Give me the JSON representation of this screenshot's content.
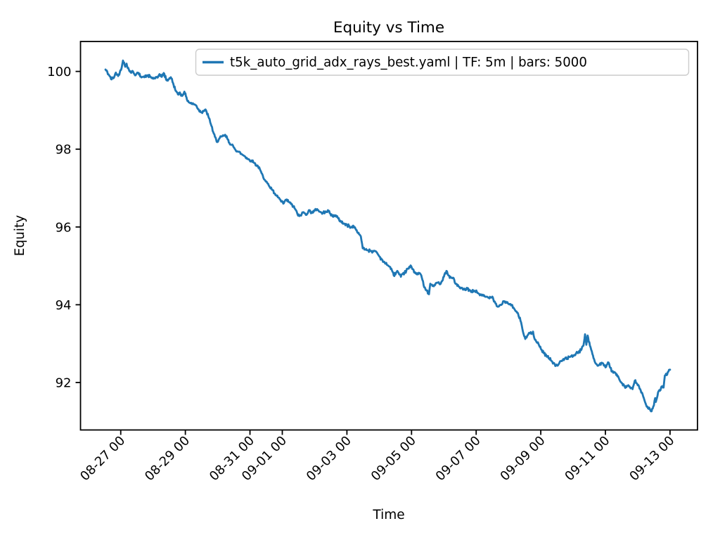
{
  "figure": {
    "background": "#ffffff"
  },
  "chart_data": {
    "type": "line",
    "title": "Equity vs Time",
    "xlabel": "Time",
    "ylabel": "Equity",
    "grid": false,
    "legend": {
      "position": "upper right",
      "entries": [
        {
          "label": "t5k_auto_grid_adx_rays_best.yaml | TF: 5m | bars: 5000",
          "color": "#1f77b4"
        }
      ]
    },
    "x_axis": {
      "tick_labels": [
        "08-27 00",
        "08-29 00",
        "08-31 00",
        "09-01 00",
        "09-03 00",
        "09-05 00",
        "09-07 00",
        "09-09 00",
        "09-11 00",
        "09-13 00"
      ],
      "tick_positions_days": [
        1,
        3,
        5,
        6,
        8,
        10,
        12,
        14,
        16,
        18
      ],
      "xlim_days": [
        -0.245,
        18.85
      ],
      "tick_rotation_deg": 45
    },
    "y_axis": {
      "tick_labels": [
        "92",
        "94",
        "96",
        "98",
        "100"
      ],
      "tick_values": [
        92,
        94,
        96,
        98,
        100
      ],
      "ylim": [
        90.78,
        100.77
      ]
    },
    "series": [
      {
        "name": "t5k_auto_grid_adx_rays_best.yaml | TF: 5m | bars: 5000",
        "color": "#1f77b4",
        "linewidth": 2.8,
        "points": [
          [
            0.528,
            100.05
          ],
          [
            0.64,
            99.9
          ],
          [
            0.7,
            99.8
          ],
          [
            0.79,
            99.84
          ],
          [
            0.85,
            99.97
          ],
          [
            0.92,
            99.88
          ],
          [
            0.99,
            100.03
          ],
          [
            1.03,
            100.1
          ],
          [
            1.07,
            100.28
          ],
          [
            1.14,
            100.12
          ],
          [
            1.18,
            100.2
          ],
          [
            1.25,
            100.05
          ],
          [
            1.31,
            99.97
          ],
          [
            1.38,
            100.0
          ],
          [
            1.46,
            99.9
          ],
          [
            1.53,
            99.96
          ],
          [
            1.62,
            99.87
          ],
          [
            1.73,
            99.85
          ],
          [
            1.83,
            99.9
          ],
          [
            1.94,
            99.84
          ],
          [
            2.05,
            99.82
          ],
          [
            2.14,
            99.84
          ],
          [
            2.2,
            99.93
          ],
          [
            2.27,
            99.86
          ],
          [
            2.33,
            99.96
          ],
          [
            2.42,
            99.77
          ],
          [
            2.49,
            99.8
          ],
          [
            2.55,
            99.85
          ],
          [
            2.62,
            99.7
          ],
          [
            2.7,
            99.5
          ],
          [
            2.77,
            99.41
          ],
          [
            2.83,
            99.46
          ],
          [
            2.9,
            99.37
          ],
          [
            2.97,
            99.48
          ],
          [
            3.05,
            99.27
          ],
          [
            3.14,
            99.19
          ],
          [
            3.25,
            99.16
          ],
          [
            3.34,
            99.12
          ],
          [
            3.42,
            99.0
          ],
          [
            3.49,
            98.95
          ],
          [
            3.57,
            98.99
          ],
          [
            3.64,
            99.0
          ],
          [
            3.73,
            98.8
          ],
          [
            3.79,
            98.64
          ],
          [
            3.88,
            98.4
          ],
          [
            3.97,
            98.19
          ],
          [
            4.05,
            98.27
          ],
          [
            4.14,
            98.33
          ],
          [
            4.23,
            98.37
          ],
          [
            4.31,
            98.25
          ],
          [
            4.4,
            98.12
          ],
          [
            4.51,
            98.04
          ],
          [
            4.62,
            97.94
          ],
          [
            4.73,
            97.88
          ],
          [
            4.84,
            97.82
          ],
          [
            4.95,
            97.74
          ],
          [
            5.05,
            97.71
          ],
          [
            5.14,
            97.64
          ],
          [
            5.25,
            97.56
          ],
          [
            5.36,
            97.38
          ],
          [
            5.47,
            97.2
          ],
          [
            5.58,
            97.07
          ],
          [
            5.69,
            96.95
          ],
          [
            5.79,
            96.82
          ],
          [
            5.88,
            96.76
          ],
          [
            5.97,
            96.65
          ],
          [
            6.03,
            96.6
          ],
          [
            6.12,
            96.7
          ],
          [
            6.21,
            96.64
          ],
          [
            6.27,
            96.59
          ],
          [
            6.34,
            96.52
          ],
          [
            6.4,
            96.46
          ],
          [
            6.47,
            96.33
          ],
          [
            6.53,
            96.28
          ],
          [
            6.6,
            96.33
          ],
          [
            6.66,
            96.38
          ],
          [
            6.73,
            96.31
          ],
          [
            6.82,
            96.43
          ],
          [
            6.9,
            96.36
          ],
          [
            6.99,
            96.41
          ],
          [
            7.08,
            96.46
          ],
          [
            7.17,
            96.39
          ],
          [
            7.25,
            96.35
          ],
          [
            7.34,
            96.4
          ],
          [
            7.43,
            96.41
          ],
          [
            7.49,
            96.34
          ],
          [
            7.56,
            96.27
          ],
          [
            7.64,
            96.3
          ],
          [
            7.73,
            96.22
          ],
          [
            7.82,
            96.14
          ],
          [
            7.9,
            96.09
          ],
          [
            7.99,
            96.05
          ],
          [
            8.08,
            96.02
          ],
          [
            8.14,
            95.99
          ],
          [
            8.21,
            96.02
          ],
          [
            8.3,
            95.92
          ],
          [
            8.36,
            95.85
          ],
          [
            8.43,
            95.76
          ],
          [
            8.49,
            95.45
          ],
          [
            8.56,
            95.42
          ],
          [
            8.65,
            95.4
          ],
          [
            8.73,
            95.39
          ],
          [
            8.82,
            95.37
          ],
          [
            8.91,
            95.36
          ],
          [
            8.99,
            95.26
          ],
          [
            9.08,
            95.16
          ],
          [
            9.17,
            95.08
          ],
          [
            9.25,
            95.02
          ],
          [
            9.34,
            94.97
          ],
          [
            9.41,
            94.85
          ],
          [
            9.45,
            94.75
          ],
          [
            9.52,
            94.82
          ],
          [
            9.56,
            94.87
          ],
          [
            9.62,
            94.78
          ],
          [
            9.67,
            94.72
          ],
          [
            9.73,
            94.79
          ],
          [
            9.78,
            94.81
          ],
          [
            9.84,
            94.88
          ],
          [
            9.89,
            94.93
          ],
          [
            9.95,
            94.96
          ],
          [
            9.99,
            94.99
          ],
          [
            10.06,
            94.9
          ],
          [
            10.1,
            94.84
          ],
          [
            10.17,
            94.78
          ],
          [
            10.26,
            94.81
          ],
          [
            10.32,
            94.69
          ],
          [
            10.39,
            94.45
          ],
          [
            10.47,
            94.36
          ],
          [
            10.54,
            94.27
          ],
          [
            10.58,
            94.54
          ],
          [
            10.65,
            94.48
          ],
          [
            10.71,
            94.51
          ],
          [
            10.8,
            94.57
          ],
          [
            10.86,
            94.54
          ],
          [
            10.93,
            94.6
          ],
          [
            11.02,
            94.78
          ],
          [
            11.08,
            94.87
          ],
          [
            11.15,
            94.75
          ],
          [
            11.23,
            94.69
          ],
          [
            11.3,
            94.69
          ],
          [
            11.36,
            94.54
          ],
          [
            11.45,
            94.48
          ],
          [
            11.52,
            94.42
          ],
          [
            11.63,
            94.39
          ],
          [
            11.73,
            94.42
          ],
          [
            11.84,
            94.33
          ],
          [
            11.95,
            94.36
          ],
          [
            12.06,
            94.3
          ],
          [
            12.17,
            94.24
          ],
          [
            12.28,
            94.21
          ],
          [
            12.39,
            94.18
          ],
          [
            12.5,
            94.21
          ],
          [
            12.6,
            94.03
          ],
          [
            12.67,
            93.95
          ],
          [
            12.76,
            94.0
          ],
          [
            12.87,
            94.09
          ],
          [
            12.95,
            94.05
          ],
          [
            13.04,
            94.02
          ],
          [
            13.1,
            94.0
          ],
          [
            13.21,
            93.85
          ],
          [
            13.3,
            93.76
          ],
          [
            13.39,
            93.55
          ],
          [
            13.45,
            93.3
          ],
          [
            13.52,
            93.12
          ],
          [
            13.58,
            93.2
          ],
          [
            13.65,
            93.28
          ],
          [
            13.71,
            93.25
          ],
          [
            13.76,
            93.31
          ],
          [
            13.82,
            93.1
          ],
          [
            13.89,
            93.02
          ],
          [
            13.95,
            92.95
          ],
          [
            14.02,
            92.85
          ],
          [
            14.1,
            92.75
          ],
          [
            14.17,
            92.7
          ],
          [
            14.26,
            92.62
          ],
          [
            14.34,
            92.55
          ],
          [
            14.41,
            92.5
          ],
          [
            14.47,
            92.44
          ],
          [
            14.56,
            92.48
          ],
          [
            14.65,
            92.55
          ],
          [
            14.73,
            92.6
          ],
          [
            14.82,
            92.62
          ],
          [
            14.91,
            92.66
          ],
          [
            15.0,
            92.69
          ],
          [
            15.08,
            92.73
          ],
          [
            15.17,
            92.78
          ],
          [
            15.26,
            92.85
          ],
          [
            15.32,
            92.95
          ],
          [
            15.37,
            93.24
          ],
          [
            15.41,
            92.97
          ],
          [
            15.45,
            93.21
          ],
          [
            15.52,
            92.95
          ],
          [
            15.58,
            92.8
          ],
          [
            15.65,
            92.6
          ],
          [
            15.71,
            92.48
          ],
          [
            15.76,
            92.43
          ],
          [
            15.82,
            92.47
          ],
          [
            15.89,
            92.51
          ],
          [
            15.95,
            92.44
          ],
          [
            16.02,
            92.4
          ],
          [
            16.08,
            92.52
          ],
          [
            16.15,
            92.38
          ],
          [
            16.21,
            92.28
          ],
          [
            16.3,
            92.25
          ],
          [
            16.37,
            92.16
          ],
          [
            16.43,
            92.08
          ],
          [
            16.52,
            91.98
          ],
          [
            16.58,
            91.92
          ],
          [
            16.65,
            91.88
          ],
          [
            16.71,
            91.93
          ],
          [
            16.78,
            91.85
          ],
          [
            16.84,
            91.83
          ],
          [
            16.91,
            92.05
          ],
          [
            16.98,
            91.97
          ],
          [
            17.04,
            91.9
          ],
          [
            17.11,
            91.74
          ],
          [
            17.17,
            91.64
          ],
          [
            17.24,
            91.47
          ],
          [
            17.3,
            91.38
          ],
          [
            17.37,
            91.33
          ],
          [
            17.43,
            91.26
          ],
          [
            17.5,
            91.41
          ],
          [
            17.54,
            91.6
          ],
          [
            17.56,
            91.5
          ],
          [
            17.63,
            91.75
          ],
          [
            17.69,
            91.79
          ],
          [
            17.74,
            91.9
          ],
          [
            17.8,
            91.87
          ],
          [
            17.84,
            92.18
          ],
          [
            17.91,
            92.2
          ],
          [
            17.95,
            92.28
          ],
          [
            18.0,
            92.33
          ]
        ]
      }
    ]
  }
}
